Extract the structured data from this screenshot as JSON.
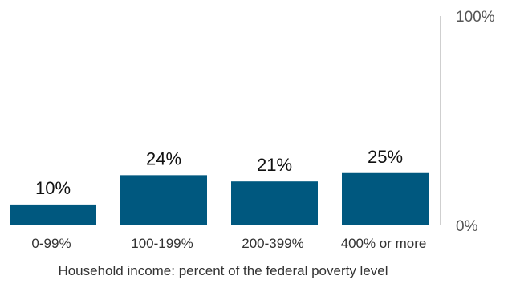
{
  "chart_data": {
    "type": "bar",
    "categories": [
      "0-99%",
      "100-199%",
      "200-399%",
      "400% or more"
    ],
    "values": [
      10,
      24,
      21,
      25
    ],
    "value_labels": [
      "10%",
      "24%",
      "21%",
      "25%"
    ],
    "title": "",
    "xlabel": "Household income: percent of the federal poverty level",
    "ylabel": "",
    "ylim": [
      0,
      100
    ],
    "y_ticks": [
      {
        "value": 0,
        "label": "0%"
      },
      {
        "value": 100,
        "label": "100%"
      }
    ],
    "y_axis_position": "right",
    "grid": false,
    "legend": "none",
    "bar_color": "#00587f",
    "axis_color": "#bfbfbf"
  }
}
